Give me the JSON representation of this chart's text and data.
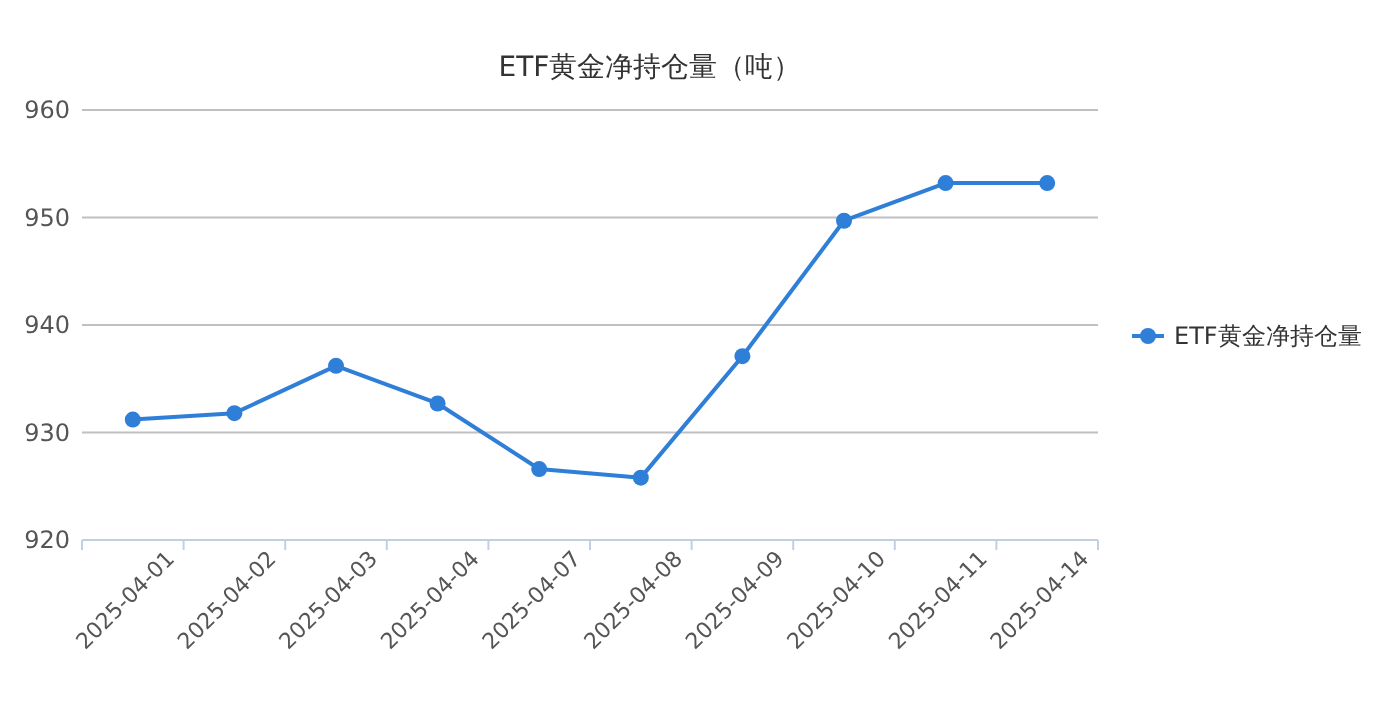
{
  "chart_data": {
    "type": "line",
    "title": "ETF黄金净持仓量（吨）",
    "categories": [
      "2025-04-01",
      "2025-04-02",
      "2025-04-03",
      "2025-04-04",
      "2025-04-07",
      "2025-04-08",
      "2025-04-09",
      "2025-04-10",
      "2025-04-11",
      "2025-04-14"
    ],
    "series": [
      {
        "name": "ETF黄金净持仓量",
        "color": "#2f7ed8",
        "values": [
          931.2,
          931.8,
          936.2,
          932.7,
          926.6,
          925.8,
          937.1,
          949.7,
          953.2,
          953.2
        ]
      }
    ],
    "ylim": [
      920,
      960
    ],
    "yticks": [
      920,
      930,
      940,
      950,
      960
    ],
    "grid": "y",
    "legend": "right",
    "marker": "circle",
    "line_style": "solid"
  }
}
